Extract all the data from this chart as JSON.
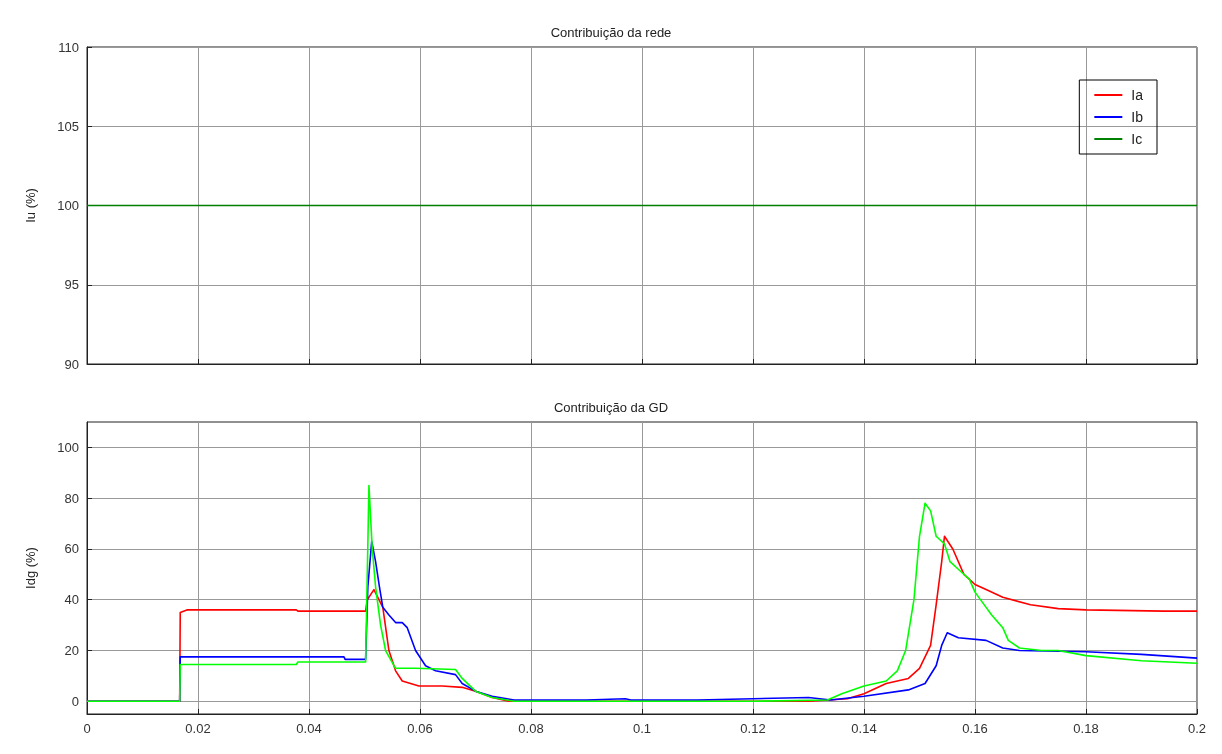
{
  "chart_data": [
    {
      "type": "line",
      "title": "Contribuição da rede",
      "ylabel": "Iu (%)",
      "x": [
        0,
        0.2
      ],
      "xlim": [
        0,
        0.2
      ],
      "xticks": [
        0,
        0.02,
        0.04,
        0.06,
        0.08,
        0.1,
        0.12,
        0.14,
        0.16,
        0.18,
        0.2
      ],
      "ylim": [
        90,
        110
      ],
      "yticks": [
        90,
        95,
        100,
        105,
        110
      ],
      "grid": true,
      "legend": "top right",
      "tick_labels": "y",
      "marker": "none",
      "line_style": "solid",
      "series": [
        {
          "name": "Ia",
          "color": "#ff0000",
          "values": [
            null,
            null
          ]
        },
        {
          "name": "Ib",
          "color": "#0000ff",
          "values": [
            null,
            null
          ]
        },
        {
          "name": "Ic",
          "color": "#008000",
          "values": [
            100,
            100
          ]
        }
      ]
    },
    {
      "type": "line",
      "title": "Contribuição da GD",
      "ylabel": "Idg (%)",
      "xlim": [
        0,
        0.2
      ],
      "xticks": [
        0,
        0.02,
        0.04,
        0.06,
        0.08,
        0.1,
        0.12,
        0.14,
        0.16,
        0.18,
        0.2
      ],
      "ylim": [
        -5,
        110
      ],
      "yticks": [
        0,
        20,
        40,
        60,
        80,
        100
      ],
      "grid": true,
      "legend": false,
      "marker": "none",
      "line_style": "solid",
      "series": [
        {
          "color": "#ff0000",
          "x": [
            0,
            0.0167,
            0.0168,
            0.018,
            0.0377,
            0.038,
            0.0502,
            0.0505,
            0.0517,
            0.0533,
            0.0544,
            0.0556,
            0.0568,
            0.0598,
            0.064,
            0.0676,
            0.07,
            0.073,
            0.076,
            0.09,
            0.11,
            0.13,
            0.137,
            0.14,
            0.144,
            0.148,
            0.15,
            0.152,
            0.153,
            0.154,
            0.1545,
            0.156,
            0.158,
            0.16,
            0.162,
            0.165,
            0.17,
            0.175,
            0.18,
            0.194,
            0.2
          ],
          "values": [
            0,
            0,
            35,
            36,
            36,
            35.5,
            35.5,
            40,
            44,
            37,
            20,
            12,
            8,
            6,
            6,
            5.5,
            4,
            1.5,
            0,
            0,
            0,
            0,
            1,
            3,
            7,
            9,
            13,
            22,
            38,
            55,
            65,
            60,
            50,
            46,
            44,
            41,
            38,
            36.5,
            36,
            35.5,
            35.5
          ]
        },
        {
          "color": "#0000ff",
          "x": [
            0,
            0.0167,
            0.0168,
            0.0463,
            0.0465,
            0.0502,
            0.0506,
            0.0513,
            0.052,
            0.0527,
            0.0533,
            0.0544,
            0.0556,
            0.0568,
            0.0577,
            0.0592,
            0.061,
            0.0628,
            0.0664,
            0.0676,
            0.07,
            0.073,
            0.077,
            0.09,
            0.097,
            0.098,
            0.11,
            0.12,
            0.13,
            0.134,
            0.14,
            0.148,
            0.151,
            0.153,
            0.154,
            0.155,
            0.157,
            0.162,
            0.165,
            0.168,
            0.18,
            0.19,
            0.2
          ],
          "values": [
            0,
            0,
            17.5,
            17.5,
            16.5,
            16.5,
            45,
            63,
            55,
            45,
            37,
            34,
            31,
            31,
            29,
            20,
            14,
            12,
            10.5,
            7,
            4,
            2,
            0.5,
            0.5,
            1,
            0.5,
            0.5,
            1,
            1.5,
            0.5,
            2,
            4.5,
            7,
            14,
            22,
            27,
            25,
            24,
            21,
            20,
            19.5,
            18.5,
            17
          ]
        },
        {
          "color": "#00ff00",
          "x": [
            0,
            0.0167,
            0.0168,
            0.0377,
            0.038,
            0.0502,
            0.0505,
            0.0508,
            0.0514,
            0.052,
            0.0529,
            0.0538,
            0.0556,
            0.0592,
            0.0664,
            0.0676,
            0.07,
            0.073,
            0.077,
            0.09,
            0.12,
            0.1334,
            0.136,
            0.14,
            0.144,
            0.146,
            0.1475,
            0.149,
            0.15,
            0.151,
            0.152,
            0.153,
            0.1545,
            0.1555,
            0.157,
            0.159,
            0.16,
            0.162,
            0.163,
            0.165,
            0.166,
            0.168,
            0.172,
            0.175,
            0.18,
            0.19,
            0.2
          ],
          "values": [
            0,
            0,
            14.5,
            14.5,
            15.5,
            15.5,
            50,
            85,
            60,
            45,
            30,
            20,
            13,
            13,
            12.5,
            9,
            4,
            1.5,
            0,
            0,
            0,
            0.5,
            3,
            6,
            8,
            12,
            20,
            40,
            65,
            78,
            75,
            65,
            62,
            55,
            52,
            48,
            43,
            37,
            34,
            29,
            24,
            21,
            20,
            20,
            18,
            16,
            15
          ]
        }
      ]
    }
  ]
}
